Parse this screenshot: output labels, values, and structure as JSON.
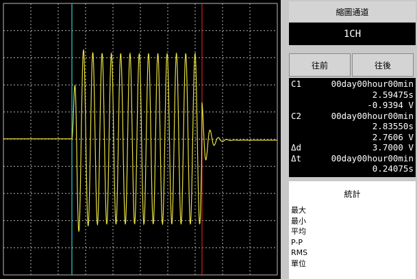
{
  "panel": {
    "channel_title": "縮圖通道",
    "channel": "1CH",
    "buttons": [
      "往前",
      "往後"
    ],
    "readout": [
      {
        "label": "C1",
        "text": "00day00hour00min"
      },
      {
        "text": "2.59475s"
      },
      {
        "text": "-0.9394 V"
      },
      {
        "label": "C2",
        "text": "00day00hour00min"
      },
      {
        "text": "2.83550s"
      },
      {
        "text": "2.7606 V"
      },
      {
        "label": "Δd",
        "text": "3.7000 V"
      },
      {
        "label": "Δt",
        "text": "00day00hour00min"
      },
      {
        "text": "0.24075s"
      }
    ],
    "stats_title": "統計",
    "stats_labels": [
      "最大",
      "最小",
      "平均",
      "P-P",
      "RMS",
      "單位"
    ]
  }
}
